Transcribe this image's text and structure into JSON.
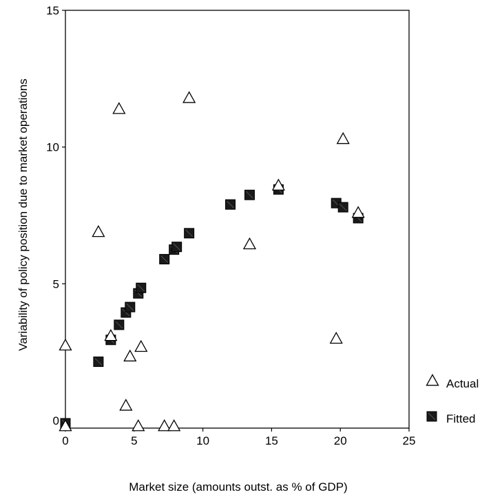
{
  "chart_data": {
    "type": "scatter",
    "xlabel": "Market size (amounts outst. as % of GDP)",
    "ylabel": "Variability of policy position due to market operations",
    "xlim": [
      0,
      25
    ],
    "ylim": [
      0,
      15
    ],
    "xticks": [
      "0",
      "5",
      "10",
      "15",
      "20",
      "25"
    ],
    "yticks": [
      "0",
      "5",
      "10",
      "15"
    ],
    "grid": false,
    "legend_position": "bottom-right",
    "series": [
      {
        "name": "Actual",
        "marker": "open-triangle",
        "color": "#000000",
        "points": [
          [
            0.0,
            2.75
          ],
          [
            0.0,
            -0.2
          ],
          [
            2.4,
            6.9
          ],
          [
            3.3,
            3.1
          ],
          [
            3.9,
            11.4
          ],
          [
            4.4,
            0.55
          ],
          [
            4.7,
            2.35
          ],
          [
            5.3,
            -0.2
          ],
          [
            5.5,
            2.7
          ],
          [
            7.2,
            -0.2
          ],
          [
            7.9,
            -0.2
          ],
          [
            9.0,
            11.8
          ],
          [
            13.4,
            6.45
          ],
          [
            15.5,
            8.6
          ],
          [
            19.7,
            3.0
          ],
          [
            20.2,
            10.3
          ],
          [
            21.3,
            7.6
          ]
        ]
      },
      {
        "name": "Fitted",
        "marker": "filled-square",
        "color": "#000000",
        "points": [
          [
            0.0,
            -0.1
          ],
          [
            2.4,
            2.15
          ],
          [
            3.3,
            2.95
          ],
          [
            3.9,
            3.5
          ],
          [
            4.4,
            3.95
          ],
          [
            4.7,
            4.15
          ],
          [
            5.3,
            4.65
          ],
          [
            5.5,
            4.85
          ],
          [
            7.2,
            5.9
          ],
          [
            7.9,
            6.25
          ],
          [
            8.1,
            6.35
          ],
          [
            9.0,
            6.85
          ],
          [
            12.0,
            7.9
          ],
          [
            13.4,
            8.25
          ],
          [
            15.5,
            8.45
          ],
          [
            19.7,
            7.95
          ],
          [
            20.2,
            7.8
          ],
          [
            21.3,
            7.4
          ]
        ]
      }
    ]
  }
}
